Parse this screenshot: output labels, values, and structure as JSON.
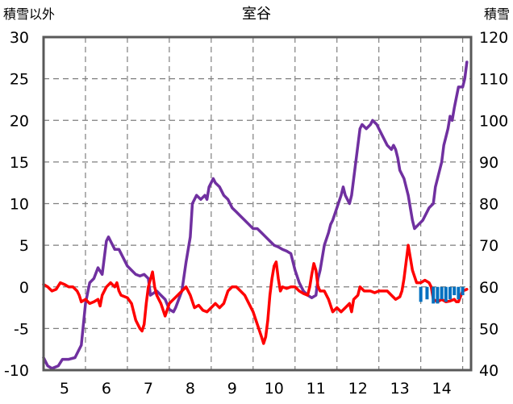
{
  "chart_data": {
    "type": "line",
    "title": "室谷",
    "ylabel_left": "積雪以外",
    "ylabel_right": "積雪",
    "x_ticks": [
      "5",
      "6",
      "7",
      "8",
      "9",
      "10",
      "11",
      "12",
      "13",
      "14"
    ],
    "xlim": [
      4.5,
      14.7
    ],
    "ylim_left": [
      -10,
      30
    ],
    "ylim_right": [
      40,
      120
    ],
    "y_ticks_left": [
      "-10",
      "-5",
      "0",
      "5",
      "10",
      "15",
      "20",
      "25",
      "30"
    ],
    "y_ticks_right": [
      "40",
      "50",
      "60",
      "70",
      "80",
      "90",
      "100",
      "110",
      "120"
    ],
    "grid": true,
    "colors": {
      "red": "#ff0000",
      "purple": "#7030a0",
      "blue": "#0070c0"
    },
    "series": [
      {
        "color": "#7030a0",
        "axis": "left",
        "points": [
          [
            4.5,
            -8.5
          ],
          [
            4.6,
            -9.5
          ],
          [
            4.7,
            -9.8
          ],
          [
            4.85,
            -9.5
          ],
          [
            4.95,
            -8.7
          ],
          [
            5.1,
            -8.7
          ],
          [
            5.25,
            -8.5
          ],
          [
            5.4,
            -7
          ],
          [
            5.5,
            -2
          ],
          [
            5.6,
            0.5
          ],
          [
            5.7,
            1
          ],
          [
            5.8,
            2.3
          ],
          [
            5.9,
            1.5
          ],
          [
            5.95,
            3.5
          ],
          [
            6.0,
            5.5
          ],
          [
            6.05,
            6
          ],
          [
            6.1,
            5.5
          ],
          [
            6.2,
            4.5
          ],
          [
            6.3,
            4.5
          ],
          [
            6.4,
            3.5
          ],
          [
            6.5,
            2.5
          ],
          [
            6.6,
            2
          ],
          [
            6.7,
            1.5
          ],
          [
            6.8,
            1.3
          ],
          [
            6.9,
            1.5
          ],
          [
            7.0,
            1
          ],
          [
            7.05,
            -1
          ],
          [
            7.2,
            -0.5
          ],
          [
            7.3,
            -1
          ],
          [
            7.4,
            -1.5
          ],
          [
            7.5,
            -2.7
          ],
          [
            7.6,
            -3
          ],
          [
            7.65,
            -2.5
          ],
          [
            7.8,
            -0.5
          ],
          [
            7.9,
            3
          ],
          [
            8.0,
            6
          ],
          [
            8.05,
            10
          ],
          [
            8.15,
            11
          ],
          [
            8.25,
            10.5
          ],
          [
            8.35,
            11
          ],
          [
            8.4,
            10.5
          ],
          [
            8.45,
            12
          ],
          [
            8.55,
            13
          ],
          [
            8.6,
            12.5
          ],
          [
            8.7,
            12
          ],
          [
            8.8,
            11
          ],
          [
            8.9,
            10.5
          ],
          [
            9.0,
            9.5
          ],
          [
            9.1,
            9
          ],
          [
            9.2,
            8.5
          ],
          [
            9.3,
            8
          ],
          [
            9.4,
            7.5
          ],
          [
            9.5,
            7
          ],
          [
            9.6,
            7
          ],
          [
            9.7,
            6.5
          ],
          [
            9.8,
            6
          ],
          [
            9.9,
            5.5
          ],
          [
            10.0,
            5
          ],
          [
            10.1,
            4.8
          ],
          [
            10.2,
            4.5
          ],
          [
            10.3,
            4.3
          ],
          [
            10.4,
            4
          ],
          [
            10.5,
            2
          ],
          [
            10.6,
            0.5
          ],
          [
            10.7,
            -0.5
          ],
          [
            10.8,
            -1
          ],
          [
            10.9,
            -1.3
          ],
          [
            11.0,
            -1
          ],
          [
            11.05,
            1
          ],
          [
            11.1,
            2
          ],
          [
            11.2,
            5
          ],
          [
            11.3,
            6.5
          ],
          [
            11.35,
            7.5
          ],
          [
            11.4,
            8
          ],
          [
            11.5,
            9.5
          ],
          [
            11.6,
            11
          ],
          [
            11.65,
            12
          ],
          [
            11.7,
            11
          ],
          [
            11.8,
            10
          ],
          [
            11.85,
            11
          ],
          [
            11.9,
            13
          ],
          [
            12.0,
            17
          ],
          [
            12.05,
            19
          ],
          [
            12.1,
            19.5
          ],
          [
            12.2,
            19
          ],
          [
            12.3,
            19.5
          ],
          [
            12.35,
            20
          ],
          [
            12.45,
            19.5
          ],
          [
            12.5,
            19
          ],
          [
            12.6,
            18
          ],
          [
            12.7,
            17
          ],
          [
            12.8,
            16.5
          ],
          [
            12.85,
            17
          ],
          [
            12.9,
            16.5
          ],
          [
            12.95,
            15.5
          ],
          [
            13.0,
            14
          ],
          [
            13.1,
            13
          ],
          [
            13.2,
            11
          ],
          [
            13.3,
            8
          ],
          [
            13.35,
            7
          ],
          [
            13.45,
            7.5
          ],
          [
            13.55,
            8
          ],
          [
            13.65,
            9
          ],
          [
            13.7,
            9.5
          ],
          [
            13.8,
            10
          ],
          [
            13.85,
            12
          ],
          [
            13.9,
            13
          ],
          [
            14.0,
            15
          ],
          [
            14.05,
            17
          ],
          [
            14.1,
            18
          ],
          [
            14.15,
            19
          ],
          [
            14.2,
            20.5
          ],
          [
            14.25,
            20
          ],
          [
            14.3,
            21.5
          ],
          [
            14.4,
            24
          ],
          [
            14.5,
            24
          ],
          [
            14.55,
            25
          ],
          [
            14.6,
            27
          ]
        ]
      },
      {
        "color": "#ff0000",
        "axis": "left",
        "points": [
          [
            4.5,
            0.3
          ],
          [
            4.6,
            0
          ],
          [
            4.7,
            -0.5
          ],
          [
            4.8,
            -0.3
          ],
          [
            4.9,
            0.5
          ],
          [
            5.0,
            0.3
          ],
          [
            5.1,
            0
          ],
          [
            5.2,
            0
          ],
          [
            5.3,
            -0.5
          ],
          [
            5.35,
            -1
          ],
          [
            5.4,
            -1.8
          ],
          [
            5.5,
            -1.5
          ],
          [
            5.6,
            -2
          ],
          [
            5.7,
            -1.8
          ],
          [
            5.8,
            -1.5
          ],
          [
            5.85,
            -2.3
          ],
          [
            5.9,
            -1
          ],
          [
            6.0,
            0
          ],
          [
            6.1,
            0.5
          ],
          [
            6.2,
            0
          ],
          [
            6.25,
            0.5
          ],
          [
            6.3,
            -0.5
          ],
          [
            6.35,
            -1
          ],
          [
            6.5,
            -1.3
          ],
          [
            6.6,
            -2
          ],
          [
            6.7,
            -4
          ],
          [
            6.8,
            -5
          ],
          [
            6.85,
            -5.3
          ],
          [
            6.9,
            -4.5
          ],
          [
            6.95,
            -2
          ],
          [
            7.0,
            0
          ],
          [
            7.1,
            1.8
          ],
          [
            7.15,
            0
          ],
          [
            7.2,
            -1
          ],
          [
            7.3,
            -2
          ],
          [
            7.4,
            -3.5
          ],
          [
            7.5,
            -2
          ],
          [
            7.6,
            -1.5
          ],
          [
            7.7,
            -1
          ],
          [
            7.8,
            -0.5
          ],
          [
            7.9,
            0
          ],
          [
            8.0,
            -1
          ],
          [
            8.1,
            -2.5
          ],
          [
            8.2,
            -2.2
          ],
          [
            8.3,
            -2.8
          ],
          [
            8.4,
            -3
          ],
          [
            8.5,
            -2.5
          ],
          [
            8.6,
            -2
          ],
          [
            8.7,
            -2.5
          ],
          [
            8.8,
            -2
          ],
          [
            8.9,
            -0.5
          ],
          [
            9.0,
            0
          ],
          [
            9.1,
            0
          ],
          [
            9.2,
            -0.5
          ],
          [
            9.3,
            -1
          ],
          [
            9.4,
            -2
          ],
          [
            9.5,
            -3
          ],
          [
            9.6,
            -4.5
          ],
          [
            9.7,
            -6
          ],
          [
            9.75,
            -6.8
          ],
          [
            9.8,
            -6
          ],
          [
            9.85,
            -4
          ],
          [
            9.9,
            -1
          ],
          [
            9.95,
            1
          ],
          [
            10.0,
            2.5
          ],
          [
            10.05,
            3
          ],
          [
            10.1,
            1
          ],
          [
            10.15,
            -0.5
          ],
          [
            10.2,
            0
          ],
          [
            10.3,
            -0.2
          ],
          [
            10.4,
            0
          ],
          [
            10.5,
            0
          ],
          [
            10.6,
            -0.5
          ],
          [
            10.7,
            -0.8
          ],
          [
            10.8,
            -1
          ],
          [
            10.85,
            0
          ],
          [
            10.9,
            1.5
          ],
          [
            10.95,
            2.8
          ],
          [
            11.0,
            2
          ],
          [
            11.05,
            0
          ],
          [
            11.1,
            -0.5
          ],
          [
            11.2,
            -0.5
          ],
          [
            11.3,
            -1.5
          ],
          [
            11.4,
            -3
          ],
          [
            11.5,
            -2.5
          ],
          [
            11.6,
            -3
          ],
          [
            11.7,
            -2.5
          ],
          [
            11.8,
            -2
          ],
          [
            11.85,
            -3
          ],
          [
            11.9,
            -1.5
          ],
          [
            12.0,
            -1
          ],
          [
            12.05,
            0
          ],
          [
            12.15,
            -0.5
          ],
          [
            12.3,
            -0.5
          ],
          [
            12.4,
            -0.7
          ],
          [
            12.5,
            -0.5
          ],
          [
            12.6,
            -0.5
          ],
          [
            12.7,
            -0.5
          ],
          [
            12.8,
            -1
          ],
          [
            12.9,
            -1.5
          ],
          [
            13.0,
            -1.2
          ],
          [
            13.05,
            -0.5
          ],
          [
            13.1,
            1
          ],
          [
            13.15,
            3
          ],
          [
            13.2,
            5
          ],
          [
            13.25,
            3.5
          ],
          [
            13.3,
            2
          ],
          [
            13.4,
            0.5
          ],
          [
            13.5,
            0.5
          ],
          [
            13.6,
            0.8
          ],
          [
            13.7,
            0.5
          ],
          [
            13.75,
            0
          ],
          [
            13.8,
            -1.5
          ],
          [
            13.9,
            -1.8
          ],
          [
            14.0,
            -1.5
          ],
          [
            14.1,
            -1.8
          ],
          [
            14.2,
            -1.7
          ],
          [
            14.3,
            -1.5
          ],
          [
            14.35,
            -1.8
          ],
          [
            14.4,
            -1.8
          ],
          [
            14.5,
            -0.5
          ],
          [
            14.6,
            -0.3
          ]
        ]
      },
      {
        "color": "#0070c0",
        "axis": "left",
        "type": "bar",
        "points": [
          [
            13.5,
            -1.8
          ],
          [
            13.65,
            -1.5
          ],
          [
            13.8,
            -2
          ],
          [
            13.9,
            -2
          ],
          [
            14.0,
            -1.5
          ],
          [
            14.1,
            -1.8
          ],
          [
            14.2,
            -1.5
          ],
          [
            14.3,
            -1.0
          ],
          [
            14.4,
            -1.5
          ],
          [
            14.5,
            -1.0
          ]
        ]
      }
    ]
  }
}
